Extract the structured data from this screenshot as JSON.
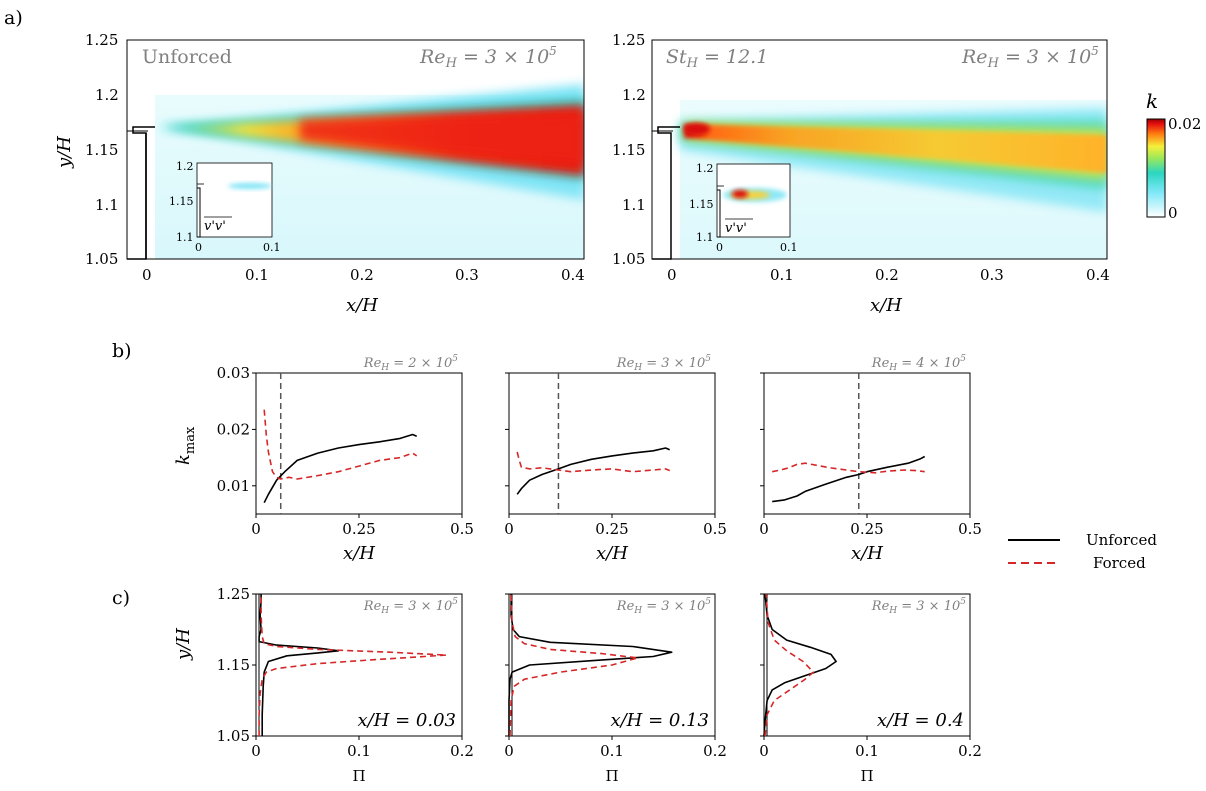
{
  "panel_labels": {
    "a": "a)",
    "b": "b)",
    "c": "c)"
  },
  "colorbar": {
    "label": "k",
    "max": "0.02",
    "min": "0"
  },
  "legend": {
    "unforced": "Unforced",
    "forced": "Forced"
  },
  "colors": {
    "unforced": "#000000",
    "forced": "#d62728",
    "vline": "#555555",
    "annot": "#808080"
  },
  "chart_data": [
    {
      "type": "heatmap",
      "id": "a-left",
      "corner_label": "Unforced",
      "annotation": "Re_H = 3 × 10^5",
      "xlabel": "x/H",
      "ylabel": "y/H",
      "xlim": [
        0,
        0.4
      ],
      "ylim": [
        1.05,
        1.25
      ],
      "xticks": [
        "0",
        "0.1",
        "0.2",
        "0.3",
        "0.4"
      ],
      "yticks": [
        "1.05",
        "1.1",
        "1.15",
        "1.2",
        "1.25"
      ],
      "field": "k",
      "inset": {
        "label": "v'v'",
        "xticks": [
          "0",
          "0.1"
        ],
        "yticks": [
          "1.1",
          "1.15",
          "1.2"
        ]
      }
    },
    {
      "type": "heatmap",
      "id": "a-right",
      "corner_label": "St_H = 12.1",
      "annotation": "Re_H = 3 × 10^5",
      "xlabel": "x/H",
      "ylabel": "",
      "xlim": [
        0,
        0.4
      ],
      "ylim": [
        1.05,
        1.25
      ],
      "xticks": [
        "0",
        "0.1",
        "0.2",
        "0.3",
        "0.4"
      ],
      "yticks": [
        "1.05",
        "1.1",
        "1.15",
        "1.2",
        "1.25"
      ],
      "field": "k",
      "inset": {
        "label": "v'v'",
        "xticks": [
          "0",
          "0.1"
        ],
        "yticks": [
          "1.1",
          "1.15",
          "1.2"
        ]
      }
    },
    {
      "type": "line",
      "id": "b1",
      "annotation": "Re_H = 2 × 10^5",
      "xlabel": "x/H",
      "ylabel": "k_max",
      "xlim": [
        0,
        0.5
      ],
      "ylim": [
        0.005,
        0.03
      ],
      "xticks": [
        "0",
        "0.25",
        "0.5"
      ],
      "yticks": [
        "0.01",
        "0.02",
        "0.03"
      ],
      "vline": 0.06,
      "series": [
        {
          "name": "Unforced",
          "x": [
            0.02,
            0.03,
            0.05,
            0.07,
            0.1,
            0.15,
            0.2,
            0.25,
            0.3,
            0.35,
            0.38,
            0.39
          ],
          "values": [
            0.007,
            0.0085,
            0.011,
            0.0125,
            0.0145,
            0.0158,
            0.0167,
            0.0173,
            0.0178,
            0.0184,
            0.0191,
            0.0188
          ]
        },
        {
          "name": "Forced",
          "x": [
            0.02,
            0.025,
            0.03,
            0.04,
            0.05,
            0.06,
            0.08,
            0.1,
            0.15,
            0.2,
            0.25,
            0.3,
            0.35,
            0.38,
            0.39
          ],
          "values": [
            0.0235,
            0.019,
            0.016,
            0.0125,
            0.0115,
            0.0112,
            0.0115,
            0.0112,
            0.0118,
            0.0125,
            0.0135,
            0.0145,
            0.015,
            0.0158,
            0.0153
          ]
        }
      ]
    },
    {
      "type": "line",
      "id": "b2",
      "annotation": "Re_H = 3 × 10^5",
      "xlabel": "x/H",
      "ylabel": "",
      "xlim": [
        0,
        0.5
      ],
      "ylim": [
        0.005,
        0.03
      ],
      "xticks": [
        "0",
        "0.25",
        "0.5"
      ],
      "yticks": [
        "0.01",
        "0.02",
        "0.03"
      ],
      "vline": 0.12,
      "series": [
        {
          "name": "Unforced",
          "x": [
            0.02,
            0.03,
            0.05,
            0.08,
            0.12,
            0.15,
            0.2,
            0.25,
            0.3,
            0.35,
            0.38,
            0.39
          ],
          "values": [
            0.0085,
            0.0095,
            0.011,
            0.012,
            0.013,
            0.0138,
            0.0147,
            0.0153,
            0.0158,
            0.0162,
            0.0167,
            0.0164
          ]
        },
        {
          "name": "Forced",
          "x": [
            0.02,
            0.025,
            0.03,
            0.05,
            0.08,
            0.12,
            0.15,
            0.2,
            0.25,
            0.3,
            0.35,
            0.38,
            0.39
          ],
          "values": [
            0.016,
            0.0145,
            0.0133,
            0.013,
            0.0132,
            0.0128,
            0.0125,
            0.0128,
            0.013,
            0.0125,
            0.0128,
            0.013,
            0.0127
          ]
        }
      ]
    },
    {
      "type": "line",
      "id": "b3",
      "annotation": "Re_H = 4 × 10^5",
      "xlabel": "x/H",
      "ylabel": "",
      "xlim": [
        0,
        0.5
      ],
      "ylim": [
        0.005,
        0.03
      ],
      "xticks": [
        "0",
        "0.25",
        "0.5"
      ],
      "yticks": [
        "0.01",
        "0.02",
        "0.03"
      ],
      "vline": 0.23,
      "series": [
        {
          "name": "Unforced",
          "x": [
            0.02,
            0.05,
            0.08,
            0.1,
            0.15,
            0.2,
            0.23,
            0.25,
            0.3,
            0.35,
            0.38,
            0.39
          ],
          "values": [
            0.0072,
            0.0075,
            0.0082,
            0.009,
            0.0103,
            0.0115,
            0.012,
            0.0125,
            0.0133,
            0.014,
            0.0148,
            0.0152
          ]
        },
        {
          "name": "Forced",
          "x": [
            0.02,
            0.04,
            0.06,
            0.08,
            0.1,
            0.13,
            0.16,
            0.2,
            0.23,
            0.27,
            0.3,
            0.34,
            0.37,
            0.39
          ],
          "values": [
            0.0125,
            0.0128,
            0.0132,
            0.0138,
            0.014,
            0.0136,
            0.0132,
            0.0128,
            0.0125,
            0.0123,
            0.0126,
            0.0128,
            0.0127,
            0.0125
          ]
        }
      ]
    },
    {
      "type": "line",
      "id": "c1",
      "annotation": "Re_H = 3 × 10^5",
      "position_label": "x/H = 0.03",
      "xlabel": "Π",
      "ylabel": "y/H",
      "xlim": [
        0,
        0.2
      ],
      "ylim": [
        1.05,
        1.25
      ],
      "xticks": [
        "0",
        "0.1",
        "0.2"
      ],
      "yticks": [
        "1.05",
        "1.15",
        "1.25"
      ],
      "series": [
        {
          "name": "Unforced",
          "x": [
            0.006,
            0.006,
            0.007,
            0.008,
            0.012,
            0.03,
            0.06,
            0.08,
            0.06,
            0.02,
            0.003,
            0.003,
            0.005,
            0.004,
            0.005,
            0.005
          ],
          "values": [
            1.05,
            1.08,
            1.12,
            1.14,
            1.155,
            1.163,
            1.167,
            1.17,
            1.174,
            1.178,
            1.183,
            1.19,
            1.2,
            1.22,
            1.24,
            1.25
          ]
        },
        {
          "name": "Forced",
          "x": [
            0.003,
            0.003,
            0.004,
            0.006,
            0.01,
            0.02,
            0.06,
            0.12,
            0.185,
            0.13,
            0.06,
            0.02,
            0.008,
            0.006,
            0.005,
            0.005
          ],
          "values": [
            1.05,
            1.08,
            1.11,
            1.13,
            1.14,
            1.145,
            1.152,
            1.158,
            1.164,
            1.168,
            1.172,
            1.176,
            1.18,
            1.19,
            1.22,
            1.25
          ]
        }
      ]
    },
    {
      "type": "line",
      "id": "c2",
      "annotation": "Re_H = 3 × 10^5",
      "position_label": "x/H = 0.13",
      "xlabel": "Π",
      "ylabel": "",
      "xlim": [
        0,
        0.2
      ],
      "ylim": [
        1.05,
        1.25
      ],
      "xticks": [
        "0",
        "0.1",
        "0.2"
      ],
      "yticks": [
        "1.05",
        "1.15",
        "1.25"
      ],
      "series": [
        {
          "name": "Unforced",
          "x": [
            0,
            0,
            0.001,
            0.003,
            0.02,
            0.08,
            0.14,
            0.158,
            0.12,
            0.04,
            0.01,
            0.004,
            0.002,
            0.002
          ],
          "values": [
            1.05,
            1.1,
            1.13,
            1.14,
            1.15,
            1.156,
            1.162,
            1.168,
            1.176,
            1.182,
            1.19,
            1.2,
            1.22,
            1.25
          ]
        },
        {
          "name": "Forced",
          "x": [
            0.001,
            0.002,
            0.005,
            0.015,
            0.05,
            0.1,
            0.125,
            0.09,
            0.04,
            0.015,
            0.006,
            0.003,
            0.002
          ],
          "values": [
            1.05,
            1.1,
            1.12,
            1.13,
            1.14,
            1.15,
            1.16,
            1.166,
            1.172,
            1.18,
            1.19,
            1.21,
            1.25
          ]
        }
      ]
    },
    {
      "type": "line",
      "id": "c3",
      "annotation": "Re_H = 3 × 10^5",
      "position_label": "x/H = 0.4",
      "xlabel": "Π",
      "ylabel": "",
      "xlim": [
        0,
        0.2
      ],
      "ylim": [
        1.05,
        1.25
      ],
      "xticks": [
        "0",
        "0.1",
        "0.2"
      ],
      "yticks": [
        "1.05",
        "1.15",
        "1.25"
      ],
      "series": [
        {
          "name": "Unforced",
          "x": [
            0,
            0.001,
            0.003,
            0.008,
            0.02,
            0.04,
            0.06,
            0.07,
            0.065,
            0.045,
            0.022,
            0.008,
            0.003,
            0.001
          ],
          "values": [
            1.05,
            1.07,
            1.1,
            1.115,
            1.125,
            1.135,
            1.145,
            1.155,
            1.165,
            1.175,
            1.185,
            1.2,
            1.22,
            1.25
          ]
        },
        {
          "name": "Forced",
          "x": [
            0.001,
            0.003,
            0.01,
            0.025,
            0.04,
            0.048,
            0.038,
            0.022,
            0.01,
            0.004,
            0.002
          ],
          "values": [
            1.05,
            1.08,
            1.1,
            1.115,
            1.13,
            1.14,
            1.155,
            1.17,
            1.185,
            1.21,
            1.25
          ]
        }
      ]
    }
  ]
}
